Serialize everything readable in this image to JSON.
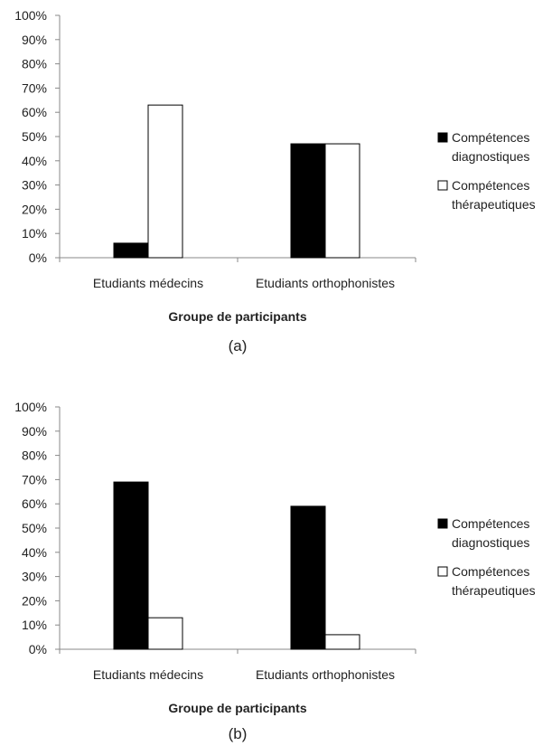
{
  "chart_data": [
    {
      "type": "bar",
      "categories": [
        "Etudiants médecins",
        "Etudiants orthophonistes"
      ],
      "series": [
        {
          "name": "Compétences diagnostiques",
          "legend_lines": [
            "Compétences",
            "diagnostiques"
          ],
          "values": [
            6,
            47
          ],
          "color": "#000000"
        },
        {
          "name": "Compétences thérapeutiques",
          "legend_lines": [
            "Compétences",
            "thérapeutiques"
          ],
          "values": [
            63,
            47
          ],
          "color": "#ffffff"
        }
      ],
      "xlabel": "Groupe de participants",
      "ylabel": "",
      "ylim": [
        0,
        100
      ],
      "yticks": [
        "0%",
        "10%",
        "20%",
        "30%",
        "40%",
        "50%",
        "60%",
        "70%",
        "80%",
        "90%",
        "100%"
      ],
      "legend_position": "right",
      "caption": "(a)"
    },
    {
      "type": "bar",
      "categories": [
        "Etudiants médecins",
        "Etudiants orthophonistes"
      ],
      "series": [
        {
          "name": "Compétences diagnostiques",
          "legend_lines": [
            "Compétences",
            "diagnostiques"
          ],
          "values": [
            69,
            59
          ],
          "color": "#000000"
        },
        {
          "name": "Compétences thérapeutiques",
          "legend_lines": [
            "Compétences",
            "thérapeutiques"
          ],
          "values": [
            13,
            6
          ],
          "color": "#ffffff"
        }
      ],
      "xlabel": "Groupe de participants",
      "ylabel": "",
      "ylim": [
        0,
        100
      ],
      "yticks": [
        "0%",
        "10%",
        "20%",
        "30%",
        "40%",
        "50%",
        "60%",
        "70%",
        "80%",
        "90%",
        "100%"
      ],
      "legend_position": "right",
      "caption": "(b)"
    }
  ]
}
